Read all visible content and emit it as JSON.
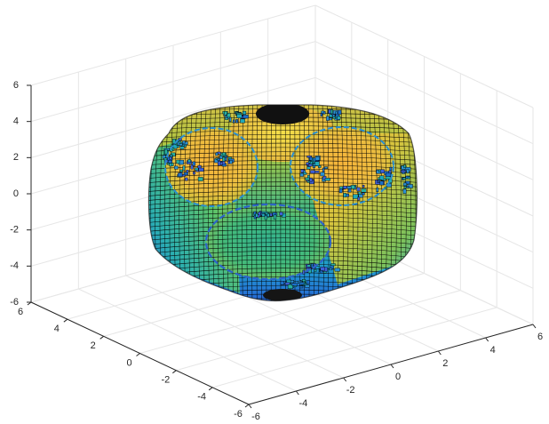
{
  "chart_data": {
    "type": "surface3d",
    "title": "",
    "xlabel": "",
    "ylabel": "",
    "zlabel": "",
    "xlim": [
      -6,
      6
    ],
    "ylim": [
      -6,
      6
    ],
    "zlim": [
      -6,
      6
    ],
    "x_ticks": [
      "-6",
      "-4",
      "-2",
      "0",
      "2",
      "4",
      "6"
    ],
    "y_ticks": [
      "-6",
      "-4",
      "-2",
      "0",
      "2",
      "4",
      "6"
    ],
    "z_ticks": [
      "-6",
      "-4",
      "-2",
      "0",
      "2",
      "4",
      "6"
    ],
    "grid": true,
    "colormap": "parula",
    "colors": {
      "grid": "#e6e6e6",
      "axis": "#262626",
      "mesh_edge": "#000000",
      "background": "#ffffff"
    },
    "surface": {
      "description_shape": "rounded cube with three circular depressions",
      "approx_extent": {
        "x": [
          -5,
          5
        ],
        "y": [
          -5,
          5
        ],
        "z": [
          -5.8,
          4.5
        ]
      }
    }
  }
}
